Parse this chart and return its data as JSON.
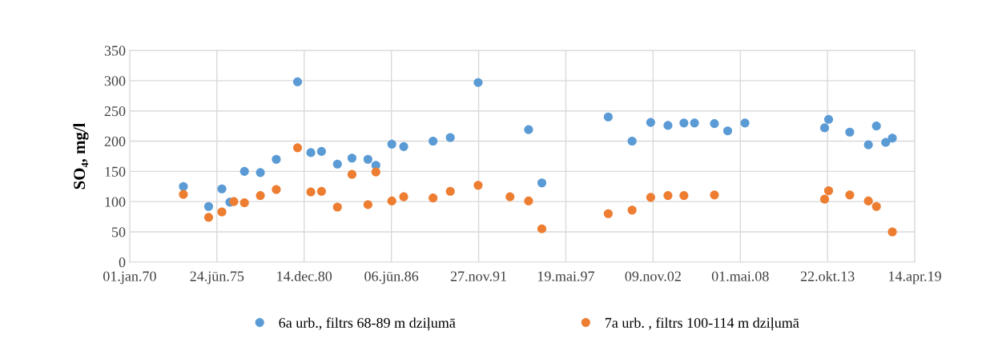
{
  "chart_data": {
    "type": "scatter",
    "ylabel": "SO₄, mg/l",
    "marker": "circle",
    "grid": true,
    "legend": "bottom",
    "xlim": [
      "1970-01-01",
      "2019-04-14"
    ],
    "xticks": [
      {
        "value": "1970-01-01",
        "label": "01.jan.70"
      },
      {
        "value": "1975-06-24",
        "label": "24.jūn.75"
      },
      {
        "value": "1980-12-14",
        "label": "14.dec.80"
      },
      {
        "value": "1986-06-06",
        "label": "06.jūn.86"
      },
      {
        "value": "1991-11-27",
        "label": "27.nov.91"
      },
      {
        "value": "1997-05-19",
        "label": "19.mai.97"
      },
      {
        "value": "2002-11-09",
        "label": "09.nov.02"
      },
      {
        "value": "2008-05-01",
        "label": "01.mai.08"
      },
      {
        "value": "2013-10-22",
        "label": "22.okt.13"
      },
      {
        "value": "2019-04-14",
        "label": "14.apr.19"
      }
    ],
    "ylim": [
      0,
      350
    ],
    "yticks": [
      0,
      50,
      100,
      150,
      200,
      250,
      300,
      350
    ],
    "series": [
      {
        "name": "6a urb., filtrs 68-89 m dziļumā",
        "color": "#5b9bd5",
        "x": [
          "1973-05",
          "1974-12",
          "1975-10",
          "1976-04",
          "1977-03",
          "1978-03",
          "1979-03",
          "1980-07",
          "1981-05",
          "1982-01",
          "1983-01",
          "1983-12",
          "1984-12",
          "1985-06",
          "1986-06",
          "1987-03",
          "1989-01",
          "1990-02",
          "1991-11",
          "1995-01",
          "1995-11",
          "2000-01",
          "2001-07",
          "2002-09",
          "2003-10",
          "2004-10",
          "2005-06",
          "2006-09",
          "2007-07",
          "2008-08",
          "2013-08",
          "2013-11",
          "2015-03",
          "2016-05",
          "2016-11",
          "2017-06",
          "2017-11"
        ],
        "values": [
          125,
          92,
          121,
          99,
          150,
          148,
          170,
          298,
          181,
          183,
          162,
          172,
          170,
          160,
          195,
          191,
          200,
          206,
          297,
          219,
          131,
          240,
          200,
          231,
          226,
          230,
          230,
          229,
          217,
          230,
          222,
          236,
          215,
          194,
          225,
          198,
          205
        ]
      },
      {
        "name": "7a urb. , filtrs 100-114 m dziļumā",
        "color": "#ed7d31",
        "x": [
          "1973-05",
          "1974-12",
          "1975-10",
          "1976-07",
          "1977-03",
          "1978-03",
          "1979-03",
          "1980-07",
          "1981-05",
          "1982-01",
          "1983-01",
          "1983-12",
          "1984-12",
          "1985-06",
          "1986-06",
          "1987-03",
          "1989-01",
          "1990-02",
          "1991-11",
          "1993-11",
          "1995-01",
          "1995-11",
          "2000-01",
          "2001-07",
          "2002-09",
          "2003-10",
          "2004-10",
          "2006-09",
          "2013-08",
          "2013-11",
          "2015-03",
          "2016-05",
          "2016-11",
          "2017-11"
        ],
        "values": [
          112,
          74,
          83,
          100,
          98,
          110,
          120,
          189,
          116,
          117,
          91,
          145,
          95,
          149,
          101,
          108,
          106,
          117,
          127,
          108,
          101,
          55,
          80,
          86,
          107,
          110,
          110,
          111,
          104,
          118,
          111,
          101,
          92,
          50
        ]
      }
    ]
  }
}
